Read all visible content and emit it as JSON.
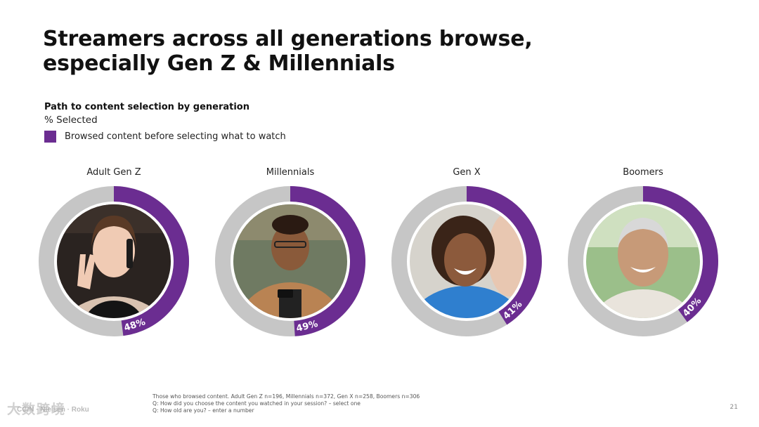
{
  "slide": {
    "title_line1": "Streamers across all generations browse,",
    "title_line2": "especially Gen Z & Millennials",
    "page_number": "21"
  },
  "chart_data": {
    "type": "donut",
    "title": "Path to content selection by generation",
    "unit": "% Selected",
    "legend": "Browsed content before selecting what to watch",
    "series_color": "#6b2d91",
    "remainder_color": "#c6c6c6",
    "categories": [
      "Adult Gen Z",
      "Millennials",
      "Gen X",
      "Boomers"
    ],
    "values": [
      48,
      49,
      41,
      40
    ],
    "value_labels": [
      "48%",
      "49%",
      "41%",
      "40%"
    ]
  },
  "footnotes": [
    "Those who browsed content. Adult Gen Z n=196, Millennials n=372, Gen X n=258, Boomers n=306",
    "Q: How did you choose the content you watched in your session? – select one",
    "Q: How old are you? – enter a number"
  ],
  "photos": [
    {
      "description": "young woman on phone making peace sign",
      "icon": "portrait-gen-z"
    },
    {
      "description": "smiling young man looking at phone",
      "icon": "portrait-millennial"
    },
    {
      "description": "laughing woman with curly hair",
      "icon": "portrait-gen-x"
    },
    {
      "description": "smiling older man",
      "icon": "portrait-boomer"
    }
  ],
  "watermark": "大数跨境",
  "colors": {
    "accent": "#6b2d91",
    "ring_gray": "#c6c6c6"
  }
}
